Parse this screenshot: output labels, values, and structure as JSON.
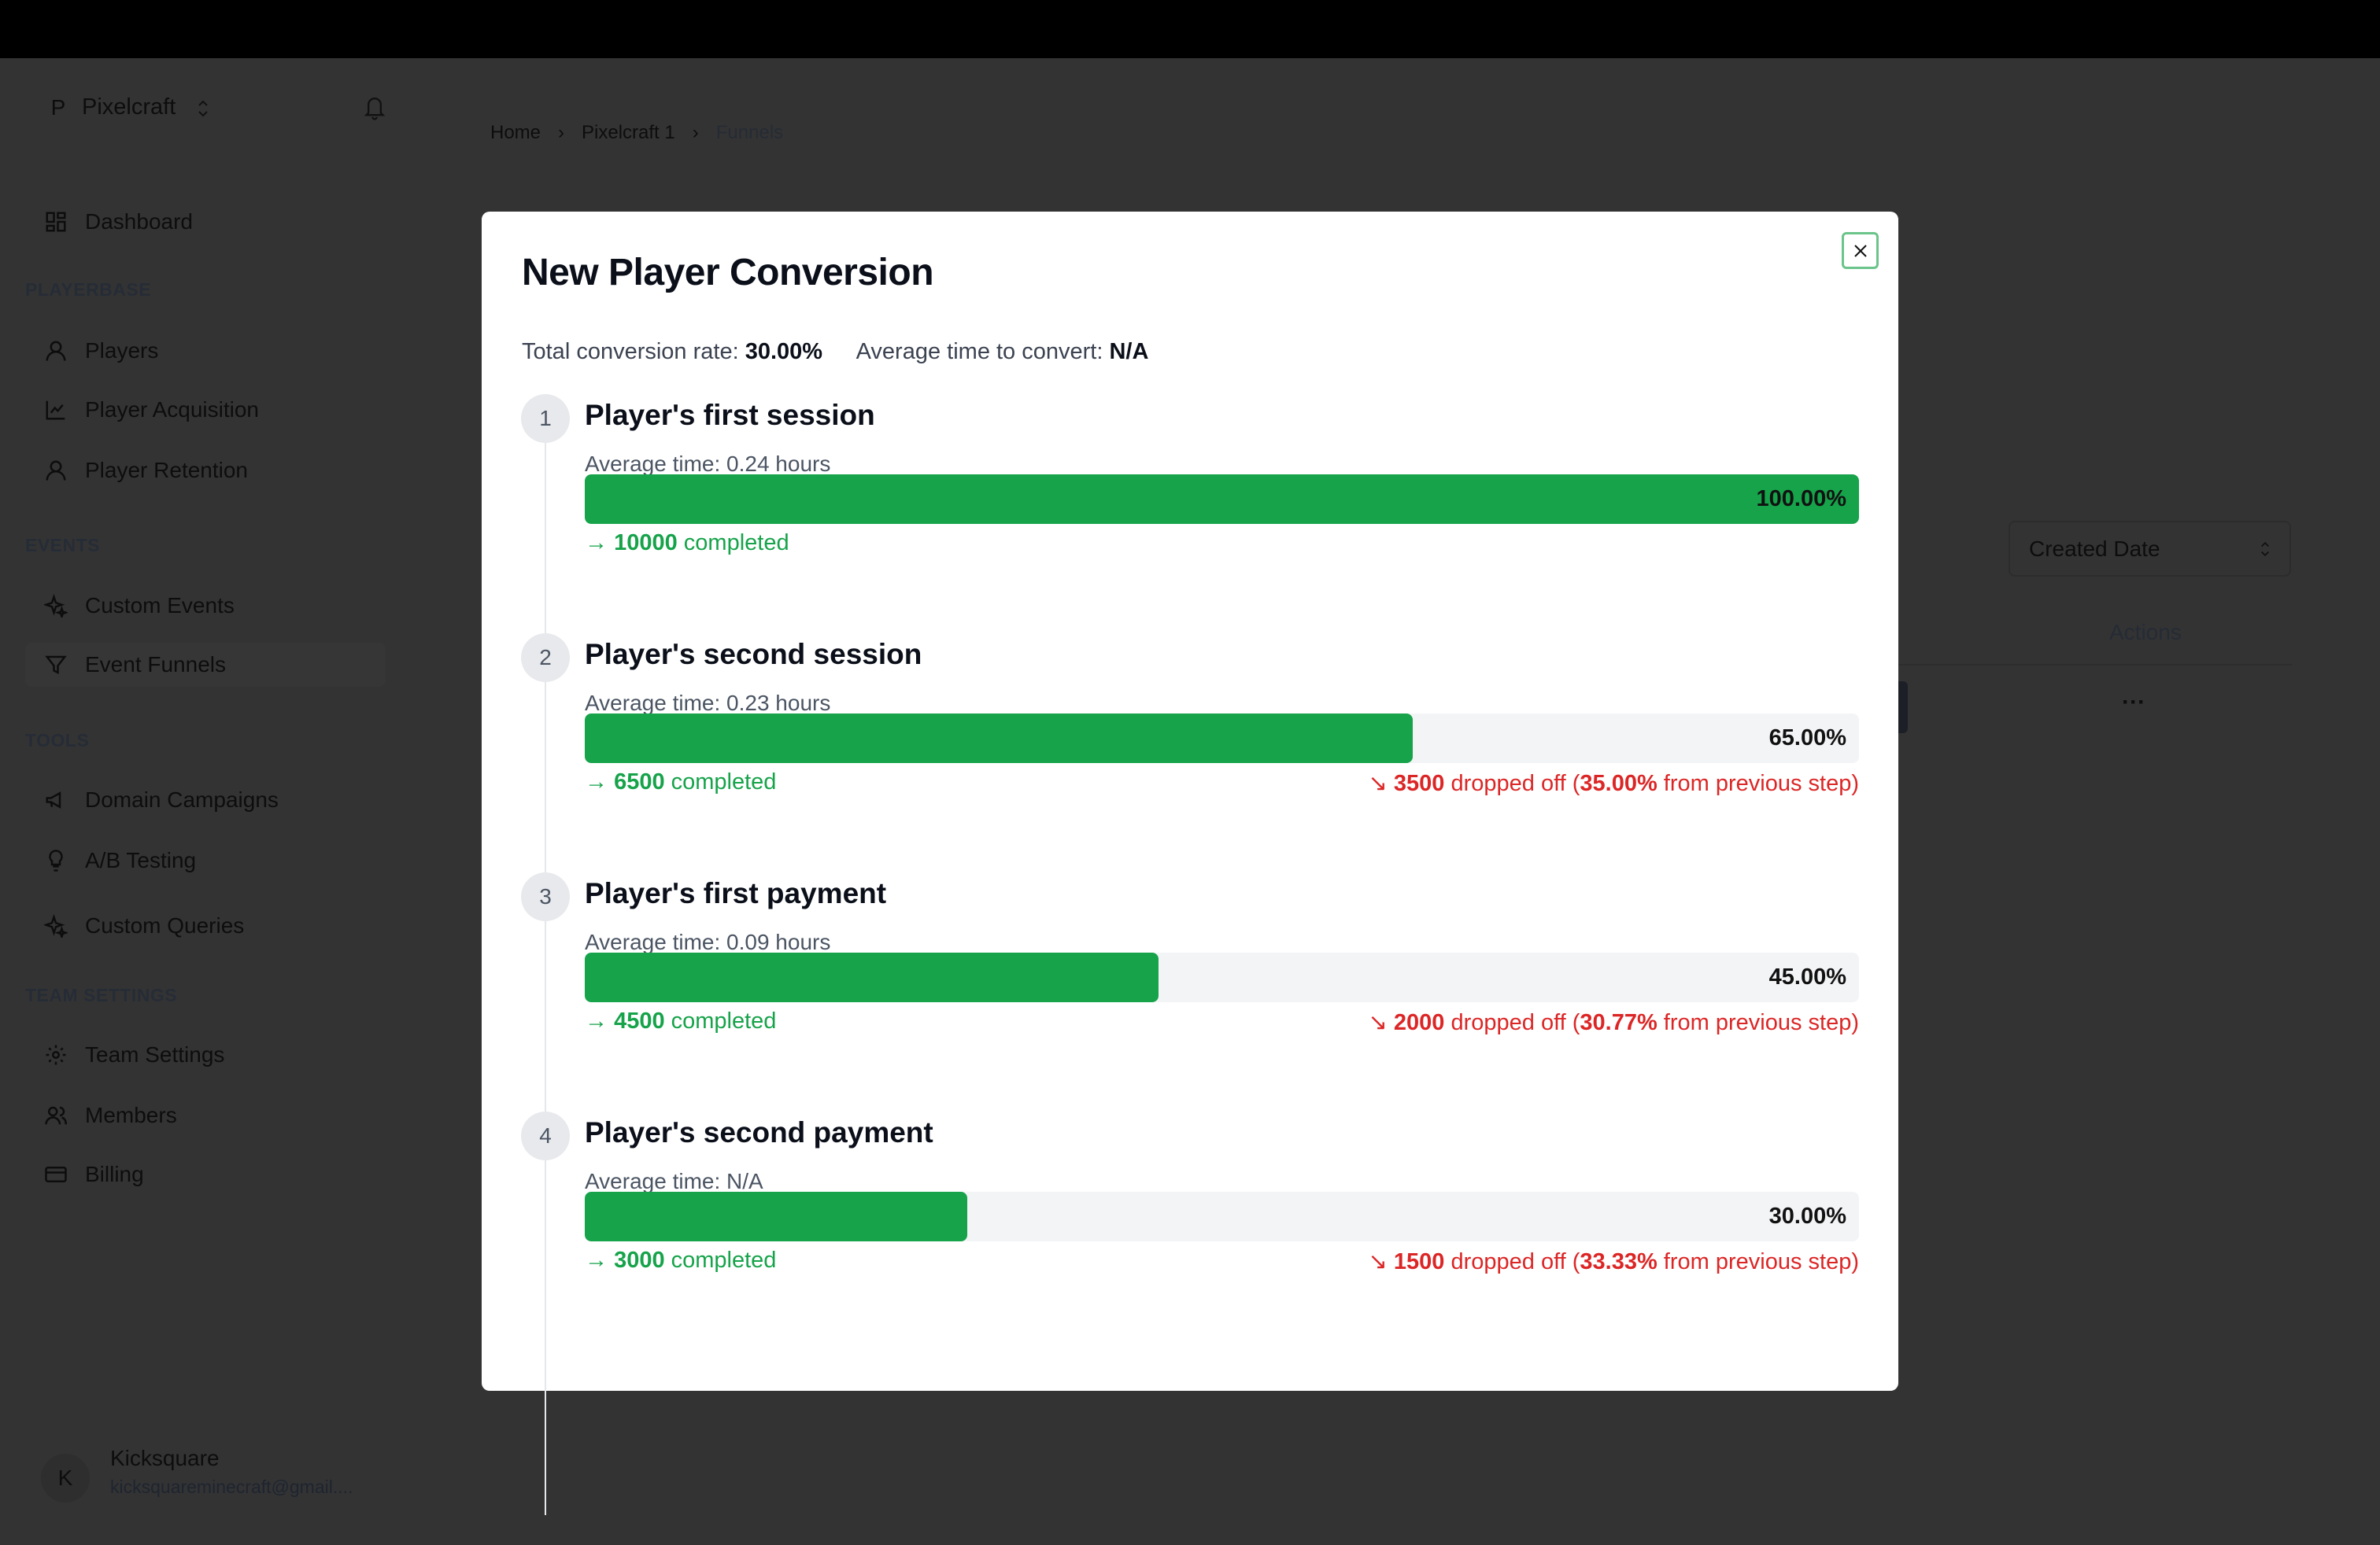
{
  "colors": {
    "accent": "#16a34a",
    "danger": "#dc2626",
    "overlay": "#333333"
  },
  "sidebar": {
    "org_initial": "P",
    "org_name": "Pixelcraft",
    "dashboard": "Dashboard",
    "sections": [
      {
        "title": "PLAYERBASE",
        "items": [
          "Players",
          "Player Acquisition",
          "Player Retention"
        ]
      },
      {
        "title": "EVENTS",
        "items": [
          "Custom Events",
          "Event Funnels"
        ]
      },
      {
        "title": "TOOLS",
        "items": [
          "Domain Campaigns",
          "A/B Testing",
          "Custom Queries"
        ]
      },
      {
        "title": "TEAM SETTINGS",
        "items": [
          "Team Settings",
          "Members",
          "Billing"
        ]
      }
    ],
    "active_item": "Event Funnels",
    "user": {
      "initial": "K",
      "name": "Kicksquare",
      "email": "kicksquareminecraft@gmail...."
    }
  },
  "breadcrumb": [
    "Home",
    "Pixelcraft 1",
    "Funnels"
  ],
  "background_table": {
    "sort_select": "Created Date",
    "actions_header": "Actions",
    "row_menu": "···"
  },
  "modal": {
    "title": "New Player Conversion",
    "summary": {
      "rate_label": "Total conversion rate:",
      "rate_value": "30.00%",
      "time_label": "Average time to convert:",
      "time_value": "N/A"
    },
    "steps": [
      {
        "number": "1",
        "title": "Player's first session",
        "avg_time": "Average time: 0.24 hours",
        "percent": 100,
        "percent_label": "100.00%",
        "completed": "10000",
        "completed_label": "completed"
      },
      {
        "number": "2",
        "title": "Player's second session",
        "avg_time": "Average time: 0.23 hours",
        "percent": 65,
        "percent_label": "65.00%",
        "completed": "6500",
        "completed_label": "completed",
        "dropped": "3500",
        "dropped_label": "dropped off (",
        "dropped_pct": "35.00%",
        "dropped_suffix": "from previous step)"
      },
      {
        "number": "3",
        "title": "Player's first payment",
        "avg_time": "Average time: 0.09 hours",
        "percent": 45,
        "percent_label": "45.00%",
        "completed": "4500",
        "completed_label": "completed",
        "dropped": "2000",
        "dropped_label": "dropped off (",
        "dropped_pct": "30.77%",
        "dropped_suffix": "from previous step)"
      },
      {
        "number": "4",
        "title": "Player's second payment",
        "avg_time": "Average time: N/A",
        "percent": 30,
        "percent_label": "30.00%",
        "completed": "3000",
        "completed_label": "completed",
        "dropped": "1500",
        "dropped_label": "dropped off (",
        "dropped_pct": "33.33%",
        "dropped_suffix": "from previous step)"
      }
    ]
  }
}
